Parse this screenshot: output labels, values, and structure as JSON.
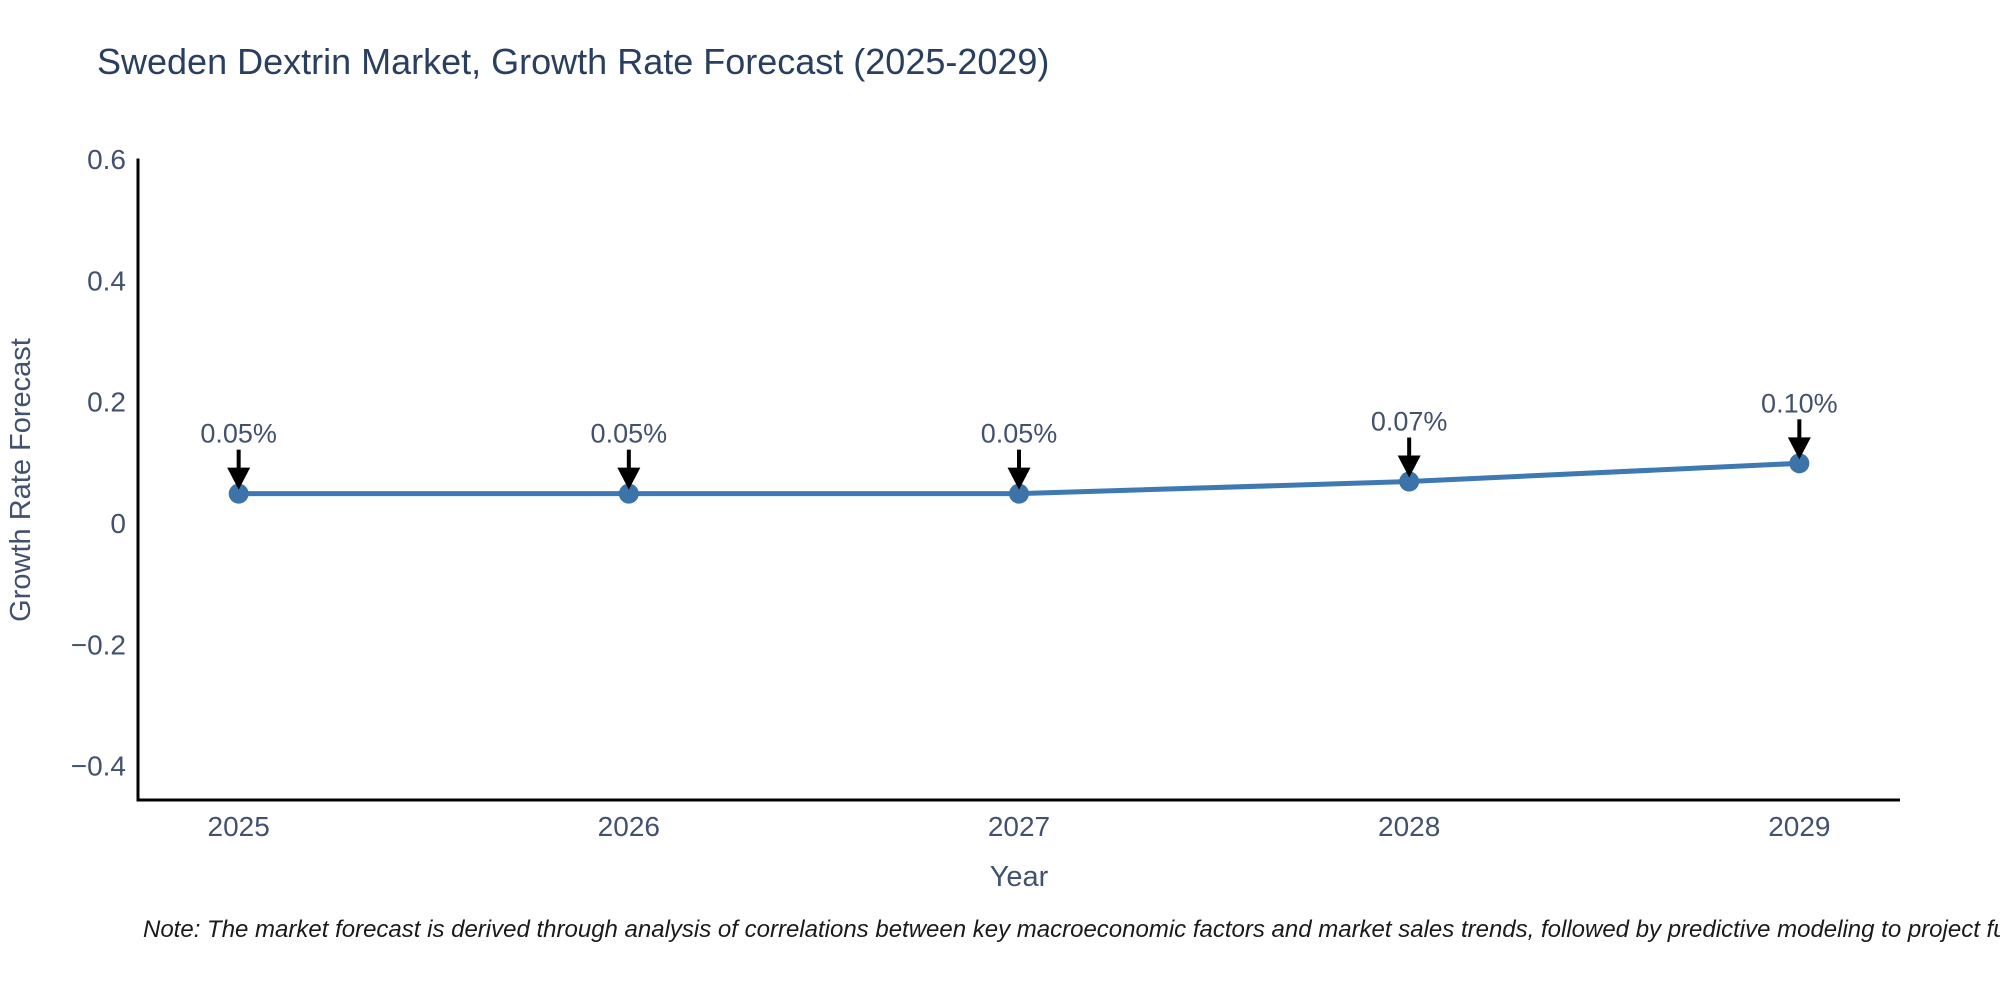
{
  "figure": {
    "title": "Sweden Dextrin Market, Growth Rate Forecast (2025-2029)",
    "note": "Note: The market forecast is derived through analysis of correlations between key macroeconomic factors and market sales trends, followed by predictive modeling to project future sa"
  },
  "chart_data": {
    "type": "line",
    "title": "Sweden Dextrin Market, Growth Rate Forecast (2025-2029)",
    "xlabel": "Year",
    "ylabel": "Growth Rate Forecast",
    "x": [
      2025,
      2026,
      2027,
      2028,
      2029
    ],
    "xtick_labels": [
      "2025",
      "2026",
      "2027",
      "2028",
      "2029"
    ],
    "values": [
      0.05,
      0.05,
      0.05,
      0.07,
      0.1
    ],
    "point_labels": [
      "0.05%",
      "0.05%",
      "0.05%",
      "0.07%",
      "0.10%"
    ],
    "yticks": [
      -0.4,
      -0.2,
      0,
      0.2,
      0.4,
      0.6
    ],
    "ytick_labels": [
      "−0.4",
      "−0.2",
      "0",
      "0.2",
      "0.4",
      "0.6"
    ],
    "ylim": [
      -0.455,
      0.6
    ],
    "xlim": [
      2024.742,
      2029.258
    ],
    "grid": false,
    "legend": "none",
    "marker": "circle",
    "annotation_arrows": true,
    "colors": {
      "line": "#3e79b4",
      "marker": "#3c73a8",
      "arrow": "#000000",
      "axis": "#000000",
      "title_text": "#2a3f5f",
      "tick_text": "#42526e",
      "note_text": "#1a1a1a",
      "background": "#ffffff"
    }
  }
}
